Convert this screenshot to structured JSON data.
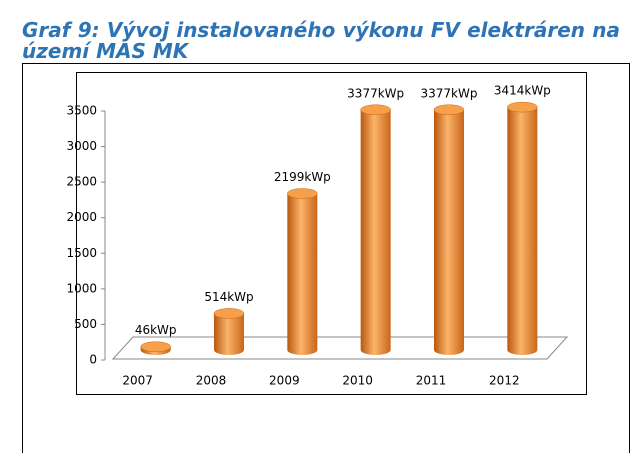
{
  "chart_data": {
    "type": "bar",
    "title": "Graf 9: Vývoj instalovaného výkonu FV elektráren na území MAS MK",
    "categories": [
      "2007",
      "2008",
      "2009",
      "2010",
      "2011",
      "2012"
    ],
    "values": [
      46,
      514,
      2199,
      3377,
      3377,
      3414
    ],
    "value_labels": [
      "46kWp",
      "514kWp",
      "2199kWp",
      "3377kWp",
      "3377kWp",
      "3414kWp"
    ],
    "color": "#f0922e",
    "ylim": [
      0,
      3500
    ],
    "yticks": [
      0,
      500,
      1000,
      1500,
      2000,
      2500,
      3000,
      3500
    ]
  }
}
